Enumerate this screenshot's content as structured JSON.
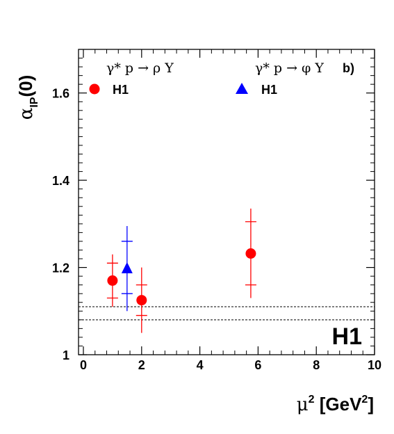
{
  "chart_data": {
    "type": "scatter",
    "xlabel_base": "μ",
    "xlabel_sup": "2",
    "xlabel_unit_open": " [GeV",
    "xlabel_unit_sup": "2",
    "xlabel_unit_close": "]",
    "ylabel_alpha": "α",
    "ylabel_sub": "IP",
    "ylabel_arg": "(0)",
    "xlim": [
      0,
      10
    ],
    "ylim": [
      1.0,
      1.7
    ],
    "x_ticks": [
      0,
      2,
      4,
      6,
      8,
      10
    ],
    "y_ticks": [
      1,
      1.2,
      1.4,
      1.6
    ],
    "x_tick_labels": [
      "0",
      "2",
      "4",
      "6",
      "8",
      "10"
    ],
    "y_tick_labels": [
      "1",
      "1.2",
      "1.4",
      "1.6"
    ],
    "reference_lines_y": [
      1.08,
      1.11
    ],
    "panel_label": "b)",
    "experiment_mark": "H1",
    "legend": {
      "rho_reaction": "γ* p → ρ Y",
      "phi_reaction": "γ* p → φ Y",
      "rho_entry": "H1",
      "phi_entry": "H1"
    },
    "series": [
      {
        "name": "H1",
        "reaction": "rho",
        "color": "#ff0000",
        "marker": "circle",
        "points": [
          {
            "x": 1.0,
            "y": 1.17,
            "stat_lo": 1.13,
            "stat_hi": 1.21,
            "tot_lo": 1.11,
            "tot_hi": 1.23
          },
          {
            "x": 2.0,
            "y": 1.125,
            "stat_lo": 1.09,
            "stat_hi": 1.16,
            "tot_lo": 1.05,
            "tot_hi": 1.2
          },
          {
            "x": 5.75,
            "y": 1.232,
            "stat_lo": 1.16,
            "stat_hi": 1.305,
            "tot_lo": 1.13,
            "tot_hi": 1.335
          }
        ]
      },
      {
        "name": "H1",
        "reaction": "phi",
        "color": "#0000ff",
        "marker": "triangle",
        "points": [
          {
            "x": 1.5,
            "y": 1.198,
            "stat_lo": 1.14,
            "stat_hi": 1.26,
            "tot_lo": 1.1,
            "tot_hi": 1.295
          }
        ]
      }
    ]
  }
}
